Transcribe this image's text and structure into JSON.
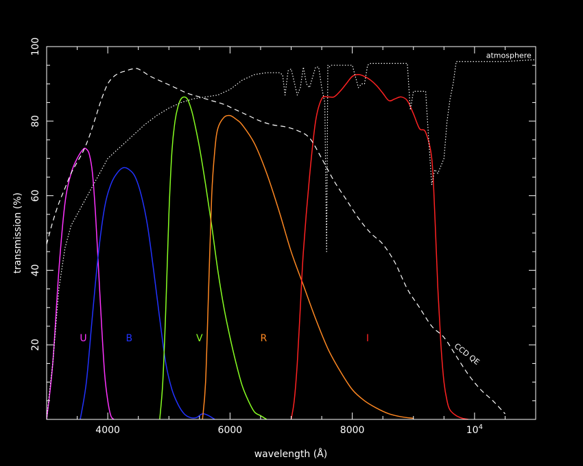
{
  "chart_data": {
    "type": "line",
    "title": "",
    "xlabel": "wavelength (Å)",
    "ylabel": "transmission (%)",
    "xlim": [
      3000,
      11000
    ],
    "ylim": [
      0,
      100
    ],
    "grid": false,
    "x_ticks": [
      {
        "value": 4000,
        "label": "4000"
      },
      {
        "value": 6000,
        "label": "6000"
      },
      {
        "value": 8000,
        "label": "8000"
      },
      {
        "value": 10000,
        "label": "10",
        "sup": "4"
      }
    ],
    "y_ticks": [
      {
        "value": 20,
        "label": "20"
      },
      {
        "value": 40,
        "label": "40"
      },
      {
        "value": 60,
        "label": "60"
      },
      {
        "value": 80,
        "label": "80"
      },
      {
        "value": 100,
        "label": "100"
      }
    ],
    "series": [
      {
        "name": "U",
        "color": "#ff33ff",
        "style": "solid",
        "label": "U",
        "label_at": [
          3600,
          21
        ],
        "x": [
          3000,
          3100,
          3200,
          3300,
          3400,
          3500,
          3600,
          3650,
          3700,
          3750,
          3800,
          3850,
          3900,
          3950,
          4000,
          4050,
          4100
        ],
        "y": [
          0,
          15,
          40,
          58,
          66,
          70,
          72.5,
          72.5,
          71,
          66,
          55,
          40,
          25,
          12,
          5,
          1,
          0
        ]
      },
      {
        "name": "B",
        "color": "#2233ff",
        "style": "solid",
        "label": "B",
        "label_at": [
          4350,
          21
        ],
        "x": [
          3550,
          3650,
          3750,
          3850,
          3950,
          4050,
          4150,
          4250,
          4350,
          4450,
          4550,
          4650,
          4750,
          4850,
          4950,
          5050,
          5150,
          5250,
          5350,
          5450,
          5550,
          5650,
          5750
        ],
        "y": [
          0,
          10,
          28,
          45,
          57,
          63,
          66,
          67.5,
          67,
          65,
          60,
          52,
          40,
          27,
          15,
          8,
          4,
          1.5,
          0.5,
          0.5,
          1.5,
          1,
          0
        ]
      },
      {
        "name": "V",
        "color": "#88ff22",
        "style": "solid",
        "label": "V",
        "label_at": [
          5500,
          21
        ],
        "x": [
          4850,
          4900,
          4950,
          5000,
          5050,
          5100,
          5150,
          5200,
          5250,
          5300,
          5350,
          5400,
          5500,
          5600,
          5700,
          5800,
          5900,
          6000,
          6100,
          6200,
          6300,
          6400,
          6500,
          6600
        ],
        "y": [
          0,
          10,
          30,
          55,
          72,
          80,
          84,
          86,
          86.5,
          86,
          84,
          81,
          73,
          63,
          52,
          40,
          30,
          22,
          15,
          9,
          5,
          2,
          1,
          0
        ]
      },
      {
        "name": "R",
        "color": "#ff8822",
        "style": "solid",
        "label": "R",
        "label_at": [
          6550,
          21
        ],
        "x": [
          5550,
          5600,
          5650,
          5700,
          5750,
          5800,
          5900,
          6000,
          6100,
          6200,
          6400,
          6600,
          6800,
          7000,
          7200,
          7400,
          7600,
          7800,
          8000,
          8200,
          8400,
          8600,
          8800,
          9000
        ],
        "y": [
          0,
          10,
          35,
          60,
          72,
          78,
          81,
          81.5,
          80.5,
          79,
          74,
          66,
          56,
          45,
          36,
          27,
          19,
          13,
          8,
          5,
          3,
          1.5,
          0.7,
          0.3
        ]
      },
      {
        "name": "I",
        "color": "#ff2222",
        "style": "solid",
        "label": "I",
        "label_at": [
          8250,
          21
        ],
        "x": [
          7000,
          7050,
          7100,
          7150,
          7200,
          7300,
          7400,
          7500,
          7600,
          7700,
          7800,
          7900,
          8000,
          8100,
          8200,
          8300,
          8400,
          8500,
          8600,
          8700,
          8800,
          8900,
          9000,
          9100,
          9200,
          9300,
          9350,
          9400,
          9450,
          9500,
          9550,
          9600,
          9700,
          9800,
          9900
        ],
        "y": [
          0,
          5,
          15,
          30,
          45,
          65,
          80,
          86,
          86.5,
          86.5,
          88,
          90,
          92,
          92.5,
          92,
          91,
          89.5,
          87.5,
          85.5,
          86,
          86.5,
          85.5,
          82,
          78,
          77,
          70,
          55,
          35,
          20,
          10,
          5,
          2.5,
          1,
          0.3,
          0
        ]
      },
      {
        "name": "CCD QE",
        "color": "#ffffff",
        "style": "dashed",
        "label": "CCD QE",
        "label_at": [
          9850,
          17
        ],
        "label_rotate": 38,
        "x": [
          3000,
          3100,
          3200,
          3300,
          3400,
          3500,
          3600,
          3700,
          3800,
          3900,
          4000,
          4100,
          4200,
          4300,
          4400,
          4500,
          4700,
          4900,
          5100,
          5300,
          5500,
          5700,
          5900,
          6100,
          6300,
          6500,
          6700,
          6900,
          7100,
          7300,
          7500,
          7700,
          7900,
          8100,
          8300,
          8500,
          8700,
          8900,
          9100,
          9300,
          9500,
          9700,
          9900,
          10100,
          10300,
          10500
        ],
        "y": [
          47,
          53,
          58,
          62,
          66,
          69,
          72,
          76,
          81,
          86,
          90,
          92,
          93,
          93.5,
          94,
          94,
          92,
          90.5,
          89,
          87.5,
          86.5,
          85.5,
          84.5,
          83,
          81.5,
          80,
          79,
          78.5,
          77.5,
          75.5,
          70,
          64,
          59,
          54,
          50,
          47,
          42,
          35,
          30,
          25,
          22,
          17,
          12,
          8,
          5,
          1.5
        ]
      },
      {
        "name": "atmosphere",
        "color": "#ffffff",
        "style": "dotted",
        "label": "atmosphere",
        "label_at": [
          10930,
          97
        ],
        "x": [
          3000,
          3050,
          3100,
          3150,
          3200,
          3300,
          3400,
          3600,
          3800,
          4000,
          4200,
          4400,
          4600,
          4800,
          5000,
          5200,
          5400,
          5600,
          5800,
          6000,
          6200,
          6400,
          6600,
          6800,
          6860,
          6900,
          6950,
          7000,
          7100,
          7150,
          7200,
          7250,
          7300,
          7400,
          7450,
          7500,
          7550,
          7580,
          7600,
          7620,
          7650,
          7700,
          7800,
          7900,
          8000,
          8100,
          8150,
          8200,
          8250,
          8300,
          8400,
          8500,
          8600,
          8800,
          8900,
          8950,
          9000,
          9050,
          9100,
          9200,
          9250,
          9300,
          9350,
          9400,
          9500,
          9550,
          9600,
          9650,
          9700,
          9800,
          9900,
          10000,
          10200,
          10500,
          11000
        ],
        "y": [
          0,
          8,
          15,
          25,
          35,
          46,
          52,
          58,
          64,
          70,
          73,
          76,
          79,
          81.5,
          83.5,
          85,
          86,
          86.5,
          87,
          88.5,
          91,
          92.5,
          93,
          93,
          92.5,
          87,
          93.5,
          94,
          87,
          89,
          94.5,
          90,
          89,
          94.5,
          94.5,
          89,
          85,
          45,
          95,
          94.5,
          95,
          95,
          95,
          95,
          95,
          89,
          90,
          90,
          95,
          95.5,
          95.5,
          95.5,
          95.5,
          95.5,
          95.5,
          83,
          88,
          88,
          88,
          88,
          75,
          63,
          67,
          66,
          70,
          80,
          86,
          90,
          96,
          96,
          96,
          96,
          96,
          96,
          96.5
        ]
      }
    ]
  }
}
